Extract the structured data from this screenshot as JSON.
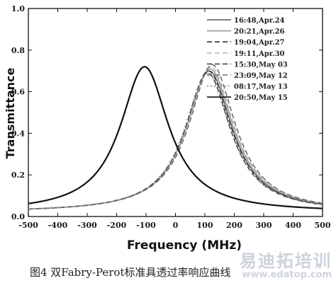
{
  "chart_data": {
    "type": "line",
    "title": "",
    "xlabel": "Frequency (MHz)",
    "ylabel": "Transmittance",
    "xlim": [
      -500,
      500
    ],
    "ylim": [
      0,
      1.0
    ],
    "x_ticks": [
      "-500",
      "-400",
      "-300",
      "-200",
      "-100",
      "0",
      "100",
      "200",
      "300",
      "400",
      "500"
    ],
    "y_ticks": [
      "0.0",
      "0.2",
      "0.4",
      "0.6",
      "0.8",
      "1.0"
    ],
    "legend_position": "top-right",
    "series": [
      {
        "name": "16:48,Apr.24",
        "color": "#555555",
        "dash": "solid",
        "peak_x": 115,
        "peak_y": 0.7,
        "hwhm": 95,
        "base": 0.02
      },
      {
        "name": "20:21,Apr.26",
        "color": "#999999",
        "dash": "solid",
        "peak_x": 118,
        "peak_y": 0.71,
        "hwhm": 96,
        "base": 0.02
      },
      {
        "name": "19:04,Apr.27",
        "color": "#333333",
        "dash": "dashed",
        "peak_x": 110,
        "peak_y": 0.69,
        "hwhm": 94,
        "base": 0.02
      },
      {
        "name": "19:11,Apr.30",
        "color": "#bbbbbb",
        "dash": "dashed",
        "peak_x": 120,
        "peak_y": 0.72,
        "hwhm": 97,
        "base": 0.02
      },
      {
        "name": "15:30,May 03",
        "color": "#444444",
        "dash": "dashed",
        "peak_x": 112,
        "peak_y": 0.7,
        "hwhm": 95,
        "base": 0.02
      },
      {
        "name": "23:09,May 12",
        "color": "#666666",
        "dash": "dashed",
        "peak_x": 125,
        "peak_y": 0.73,
        "hwhm": 96,
        "base": 0.02
      },
      {
        "name": "08:17,May 13",
        "color": "#888888",
        "dash": "dotted",
        "peak_x": 108,
        "peak_y": 0.69,
        "hwhm": 95,
        "base": 0.02
      },
      {
        "name": "20:50,May 15",
        "color": "#111111",
        "dash": "solid",
        "peak_x": -105,
        "peak_y": 0.72,
        "hwhm": 100,
        "base": 0.02
      }
    ],
    "series_x": [
      -500,
      -450,
      -400,
      -350,
      -300,
      -250,
      -200,
      -150,
      -100,
      -50,
      0,
      50,
      100,
      150,
      200,
      250,
      300,
      350,
      400,
      450,
      500
    ]
  },
  "caption": "图4 双Fabry-Perot标准具透过率响应曲线",
  "watermark": {
    "brand": "易迪拓培训",
    "url": "www.edatop.com"
  }
}
